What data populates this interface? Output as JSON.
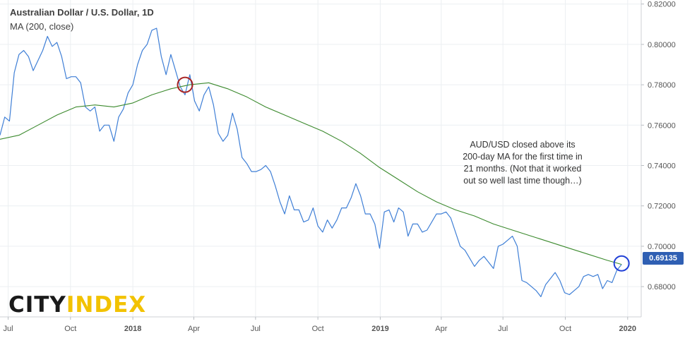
{
  "chart_data": {
    "type": "line",
    "title": "Australian Dollar / U.S. Dollar, 1D",
    "subtitle": "MA (200, close)",
    "ylim": [
      0.665,
      0.822
    ],
    "y_ticks": [
      "0.68000",
      "0.70000",
      "0.72000",
      "0.74000",
      "0.76000",
      "0.78000",
      "0.80000",
      "0.82000"
    ],
    "x_ticks": [
      "Jul",
      "Oct",
      "2018",
      "Apr",
      "Jul",
      "Oct",
      "2019",
      "Apr",
      "Jul",
      "Oct",
      "2020"
    ],
    "last_price_label": "0.69135",
    "series": [
      {
        "key": "close",
        "color": "#3f7fd6",
        "x": [
          "2017-06-19",
          "2017-06-26",
          "2017-07-03",
          "2017-07-10",
          "2017-07-17",
          "2017-07-24",
          "2017-07-31",
          "2017-08-07",
          "2017-08-14",
          "2017-08-21",
          "2017-08-28",
          "2017-09-04",
          "2017-09-11",
          "2017-09-18",
          "2017-09-25",
          "2017-10-02",
          "2017-10-09",
          "2017-10-16",
          "2017-10-23",
          "2017-10-30",
          "2017-11-06",
          "2017-11-13",
          "2017-11-20",
          "2017-11-27",
          "2017-12-04",
          "2017-12-11",
          "2017-12-18",
          "2017-12-25",
          "2018-01-01",
          "2018-01-08",
          "2018-01-15",
          "2018-01-22",
          "2018-01-29",
          "2018-02-05",
          "2018-02-12",
          "2018-02-19",
          "2018-02-26",
          "2018-03-05",
          "2018-03-12",
          "2018-03-19",
          "2018-03-26",
          "2018-04-02",
          "2018-04-09",
          "2018-04-16",
          "2018-04-23",
          "2018-04-30",
          "2018-05-07",
          "2018-05-14",
          "2018-05-21",
          "2018-05-28",
          "2018-06-04",
          "2018-06-11",
          "2018-06-18",
          "2018-06-25",
          "2018-07-02",
          "2018-07-09",
          "2018-07-16",
          "2018-07-23",
          "2018-07-30",
          "2018-08-06",
          "2018-08-13",
          "2018-08-20",
          "2018-08-27",
          "2018-09-03",
          "2018-09-10",
          "2018-09-17",
          "2018-09-24",
          "2018-10-01",
          "2018-10-08",
          "2018-10-15",
          "2018-10-22",
          "2018-10-29",
          "2018-11-05",
          "2018-11-12",
          "2018-11-19",
          "2018-11-26",
          "2018-12-03",
          "2018-12-10",
          "2018-12-17",
          "2018-12-24",
          "2018-12-31",
          "2019-01-07",
          "2019-01-14",
          "2019-01-21",
          "2019-01-28",
          "2019-02-04",
          "2019-02-11",
          "2019-02-18",
          "2019-02-25",
          "2019-03-04",
          "2019-03-11",
          "2019-03-18",
          "2019-03-25",
          "2019-04-01",
          "2019-04-08",
          "2019-04-15",
          "2019-04-22",
          "2019-04-29",
          "2019-05-06",
          "2019-05-13",
          "2019-05-20",
          "2019-05-27",
          "2019-06-03",
          "2019-06-10",
          "2019-06-17",
          "2019-06-24",
          "2019-07-01",
          "2019-07-08",
          "2019-07-15",
          "2019-07-22",
          "2019-07-29",
          "2019-08-05",
          "2019-08-12",
          "2019-08-19",
          "2019-08-26",
          "2019-09-02",
          "2019-09-09",
          "2019-09-16",
          "2019-09-23",
          "2019-09-30",
          "2019-10-07",
          "2019-10-14",
          "2019-10-21",
          "2019-10-28",
          "2019-11-04",
          "2019-11-11",
          "2019-11-18",
          "2019-11-25",
          "2019-12-02",
          "2019-12-09",
          "2019-12-16",
          "2019-12-23"
        ],
        "values": [
          0.755,
          0.764,
          0.762,
          0.786,
          0.795,
          0.797,
          0.794,
          0.787,
          0.792,
          0.797,
          0.804,
          0.799,
          0.801,
          0.794,
          0.783,
          0.784,
          0.784,
          0.781,
          0.769,
          0.767,
          0.769,
          0.757,
          0.76,
          0.76,
          0.752,
          0.764,
          0.768,
          0.776,
          0.78,
          0.79,
          0.797,
          0.8,
          0.807,
          0.808,
          0.794,
          0.785,
          0.795,
          0.787,
          0.779,
          0.775,
          0.785,
          0.772,
          0.767,
          0.775,
          0.779,
          0.77,
          0.756,
          0.752,
          0.755,
          0.766,
          0.758,
          0.744,
          0.741,
          0.737,
          0.737,
          0.738,
          0.74,
          0.737,
          0.73,
          0.722,
          0.716,
          0.725,
          0.718,
          0.718,
          0.712,
          0.713,
          0.719,
          0.71,
          0.707,
          0.713,
          0.709,
          0.713,
          0.719,
          0.719,
          0.724,
          0.731,
          0.725,
          0.716,
          0.716,
          0.711,
          0.699,
          0.717,
          0.718,
          0.712,
          0.719,
          0.717,
          0.705,
          0.711,
          0.711,
          0.707,
          0.708,
          0.712,
          0.716,
          0.716,
          0.717,
          0.714,
          0.707,
          0.7,
          0.698,
          0.694,
          0.69,
          0.693,
          0.695,
          0.692,
          0.689,
          0.7,
          0.701,
          0.703,
          0.705,
          0.7,
          0.683,
          0.682,
          0.68,
          0.678,
          0.675,
          0.681,
          0.684,
          0.687,
          0.683,
          0.677,
          0.676,
          0.678,
          0.68,
          0.685,
          0.686,
          0.685,
          0.686,
          0.679,
          0.683,
          0.682,
          0.688,
          0.691
        ]
      },
      {
        "key": "ma200",
        "color": "#3c8a2e",
        "x": [
          "2017-06-19",
          "2017-07-17",
          "2017-08-14",
          "2017-09-11",
          "2017-10-09",
          "2017-11-06",
          "2017-12-04",
          "2018-01-01",
          "2018-01-29",
          "2018-02-26",
          "2018-03-26",
          "2018-04-23",
          "2018-05-21",
          "2018-06-18",
          "2018-07-16",
          "2018-08-13",
          "2018-09-10",
          "2018-10-08",
          "2018-11-05",
          "2018-12-03",
          "2018-12-31",
          "2019-01-28",
          "2019-02-25",
          "2019-03-25",
          "2019-04-22",
          "2019-05-20",
          "2019-06-17",
          "2019-07-15",
          "2019-08-12",
          "2019-09-09",
          "2019-10-07",
          "2019-11-04",
          "2019-12-02",
          "2019-12-23"
        ],
        "values": [
          0.753,
          0.755,
          0.76,
          0.765,
          0.769,
          0.77,
          0.769,
          0.771,
          0.775,
          0.778,
          0.78,
          0.781,
          0.778,
          0.774,
          0.769,
          0.765,
          0.761,
          0.757,
          0.752,
          0.746,
          0.739,
          0.733,
          0.727,
          0.722,
          0.718,
          0.715,
          0.711,
          0.708,
          0.705,
          0.702,
          0.699,
          0.696,
          0.693,
          0.691
        ]
      }
    ],
    "annotation": "AUD/USD closed above its 200-day MA for the first time in 21 months. (Not that it worked out so well last time though…)",
    "markers": [
      {
        "x": "2018-03-19",
        "y": 0.78,
        "color": "#a82323"
      },
      {
        "x": "2019-12-23",
        "y": 0.6915,
        "color": "#1f3fd6"
      }
    ]
  },
  "logo": {
    "part1": "CITY",
    "part2": "INDEX"
  }
}
